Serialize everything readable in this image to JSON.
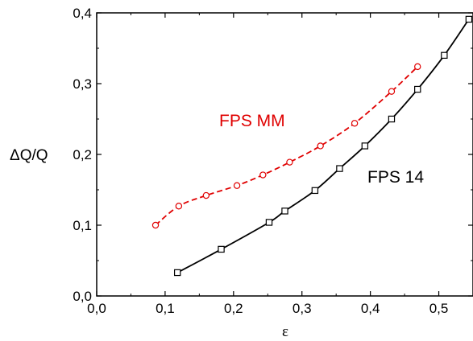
{
  "chart_data": {
    "type": "line",
    "xlabel": "ε",
    "ylabel": "ΔQ/Q",
    "xlim": [
      0.0,
      0.55
    ],
    "ylim": [
      0.0,
      0.4
    ],
    "xticks": [
      0.0,
      0.1,
      0.2,
      0.3,
      0.4,
      0.5
    ],
    "xtick_labels": [
      "0,0",
      "0,1",
      "0,2",
      "0,3",
      "0,4",
      "0,5"
    ],
    "yticks": [
      0.0,
      0.1,
      0.2,
      0.3,
      0.4
    ],
    "ytick_labels": [
      "0,0",
      "0,1",
      "0,2",
      "0,3",
      "0,4"
    ],
    "grid": false,
    "series": [
      {
        "name": "FPS MM",
        "color": "#e00000",
        "marker": "circle",
        "line_style": "dashed",
        "x": [
          0.086,
          0.12,
          0.16,
          0.205,
          0.243,
          0.282,
          0.327,
          0.377,
          0.431,
          0.469
        ],
        "y": [
          0.1,
          0.127,
          0.142,
          0.156,
          0.171,
          0.189,
          0.212,
          0.244,
          0.289,
          0.324
        ]
      },
      {
        "name": "FPS 14",
        "color": "#000000",
        "marker": "square",
        "line_style": "solid",
        "x": [
          0.118,
          0.182,
          0.252,
          0.275,
          0.319,
          0.355,
          0.392,
          0.431,
          0.469,
          0.508,
          0.544
        ],
        "y": [
          0.033,
          0.066,
          0.104,
          0.12,
          0.149,
          0.18,
          0.212,
          0.25,
          0.292,
          0.34,
          0.391
        ]
      }
    ]
  }
}
